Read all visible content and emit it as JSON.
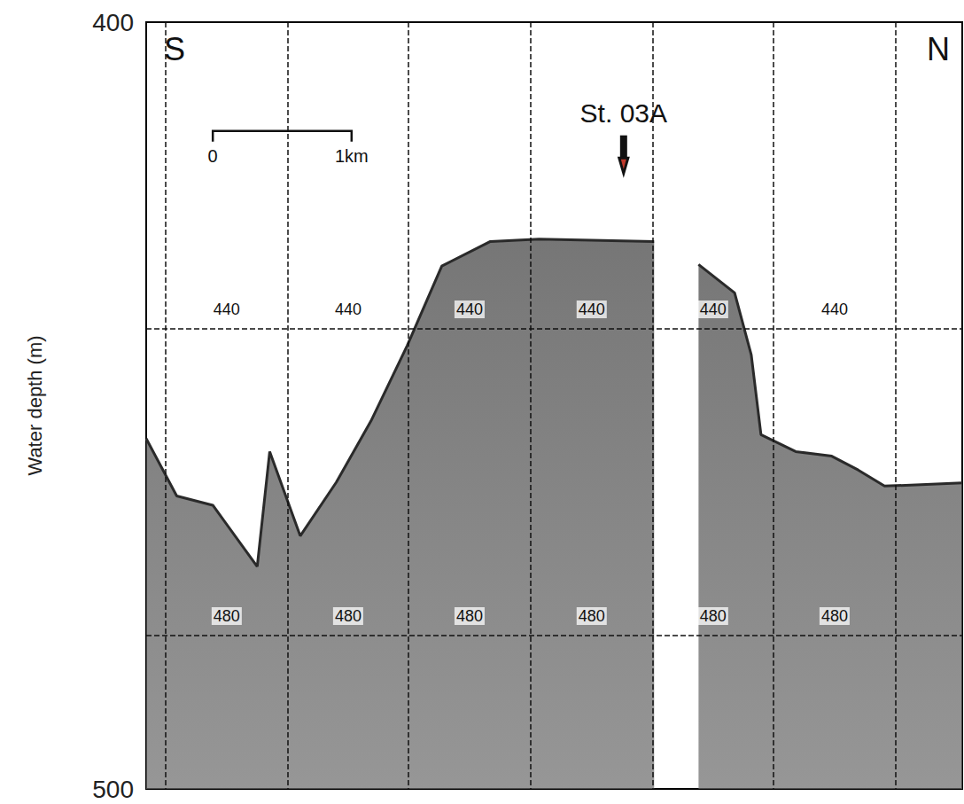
{
  "chart_data": {
    "type": "line",
    "y_label": "Water depth (m)",
    "x": [
      0,
      0.22,
      0.48,
      0.8,
      0.89,
      1.11,
      1.37,
      1.62,
      1.88,
      2.13,
      2.48,
      2.83,
      3.66,
      3.82,
      3.98,
      4.24,
      4.36,
      4.43,
      4.68,
      4.94,
      5.13,
      5.32,
      5.88
    ],
    "values": [
      454.3,
      461.8,
      463,
      471,
      456,
      467,
      460,
      452,
      442.2,
      431.8,
      428.6,
      428.3,
      428.6,
      null,
      431.6,
      435.3,
      443.4,
      453.8,
      456,
      456.6,
      458.4,
      460.5,
      460.1
    ],
    "color": "#2a2a2a",
    "xlim": [
      0,
      5.88
    ],
    "xticks": [
      0.14,
      1.02,
      1.89,
      2.77,
      3.65,
      4.52,
      5.4
    ],
    "ylim": [
      400,
      500
    ],
    "yticks": [
      400,
      500
    ],
    "grid": true,
    "tick_labels": "y",
    "depth_lines": [
      440,
      480
    ],
    "direction_labels": [
      "S",
      "N"
    ],
    "scale_bar": {
      "length": 1,
      "labels": [
        "0",
        "1km"
      ]
    },
    "station": {
      "label": "St. 03A",
      "x": 3.44
    }
  }
}
